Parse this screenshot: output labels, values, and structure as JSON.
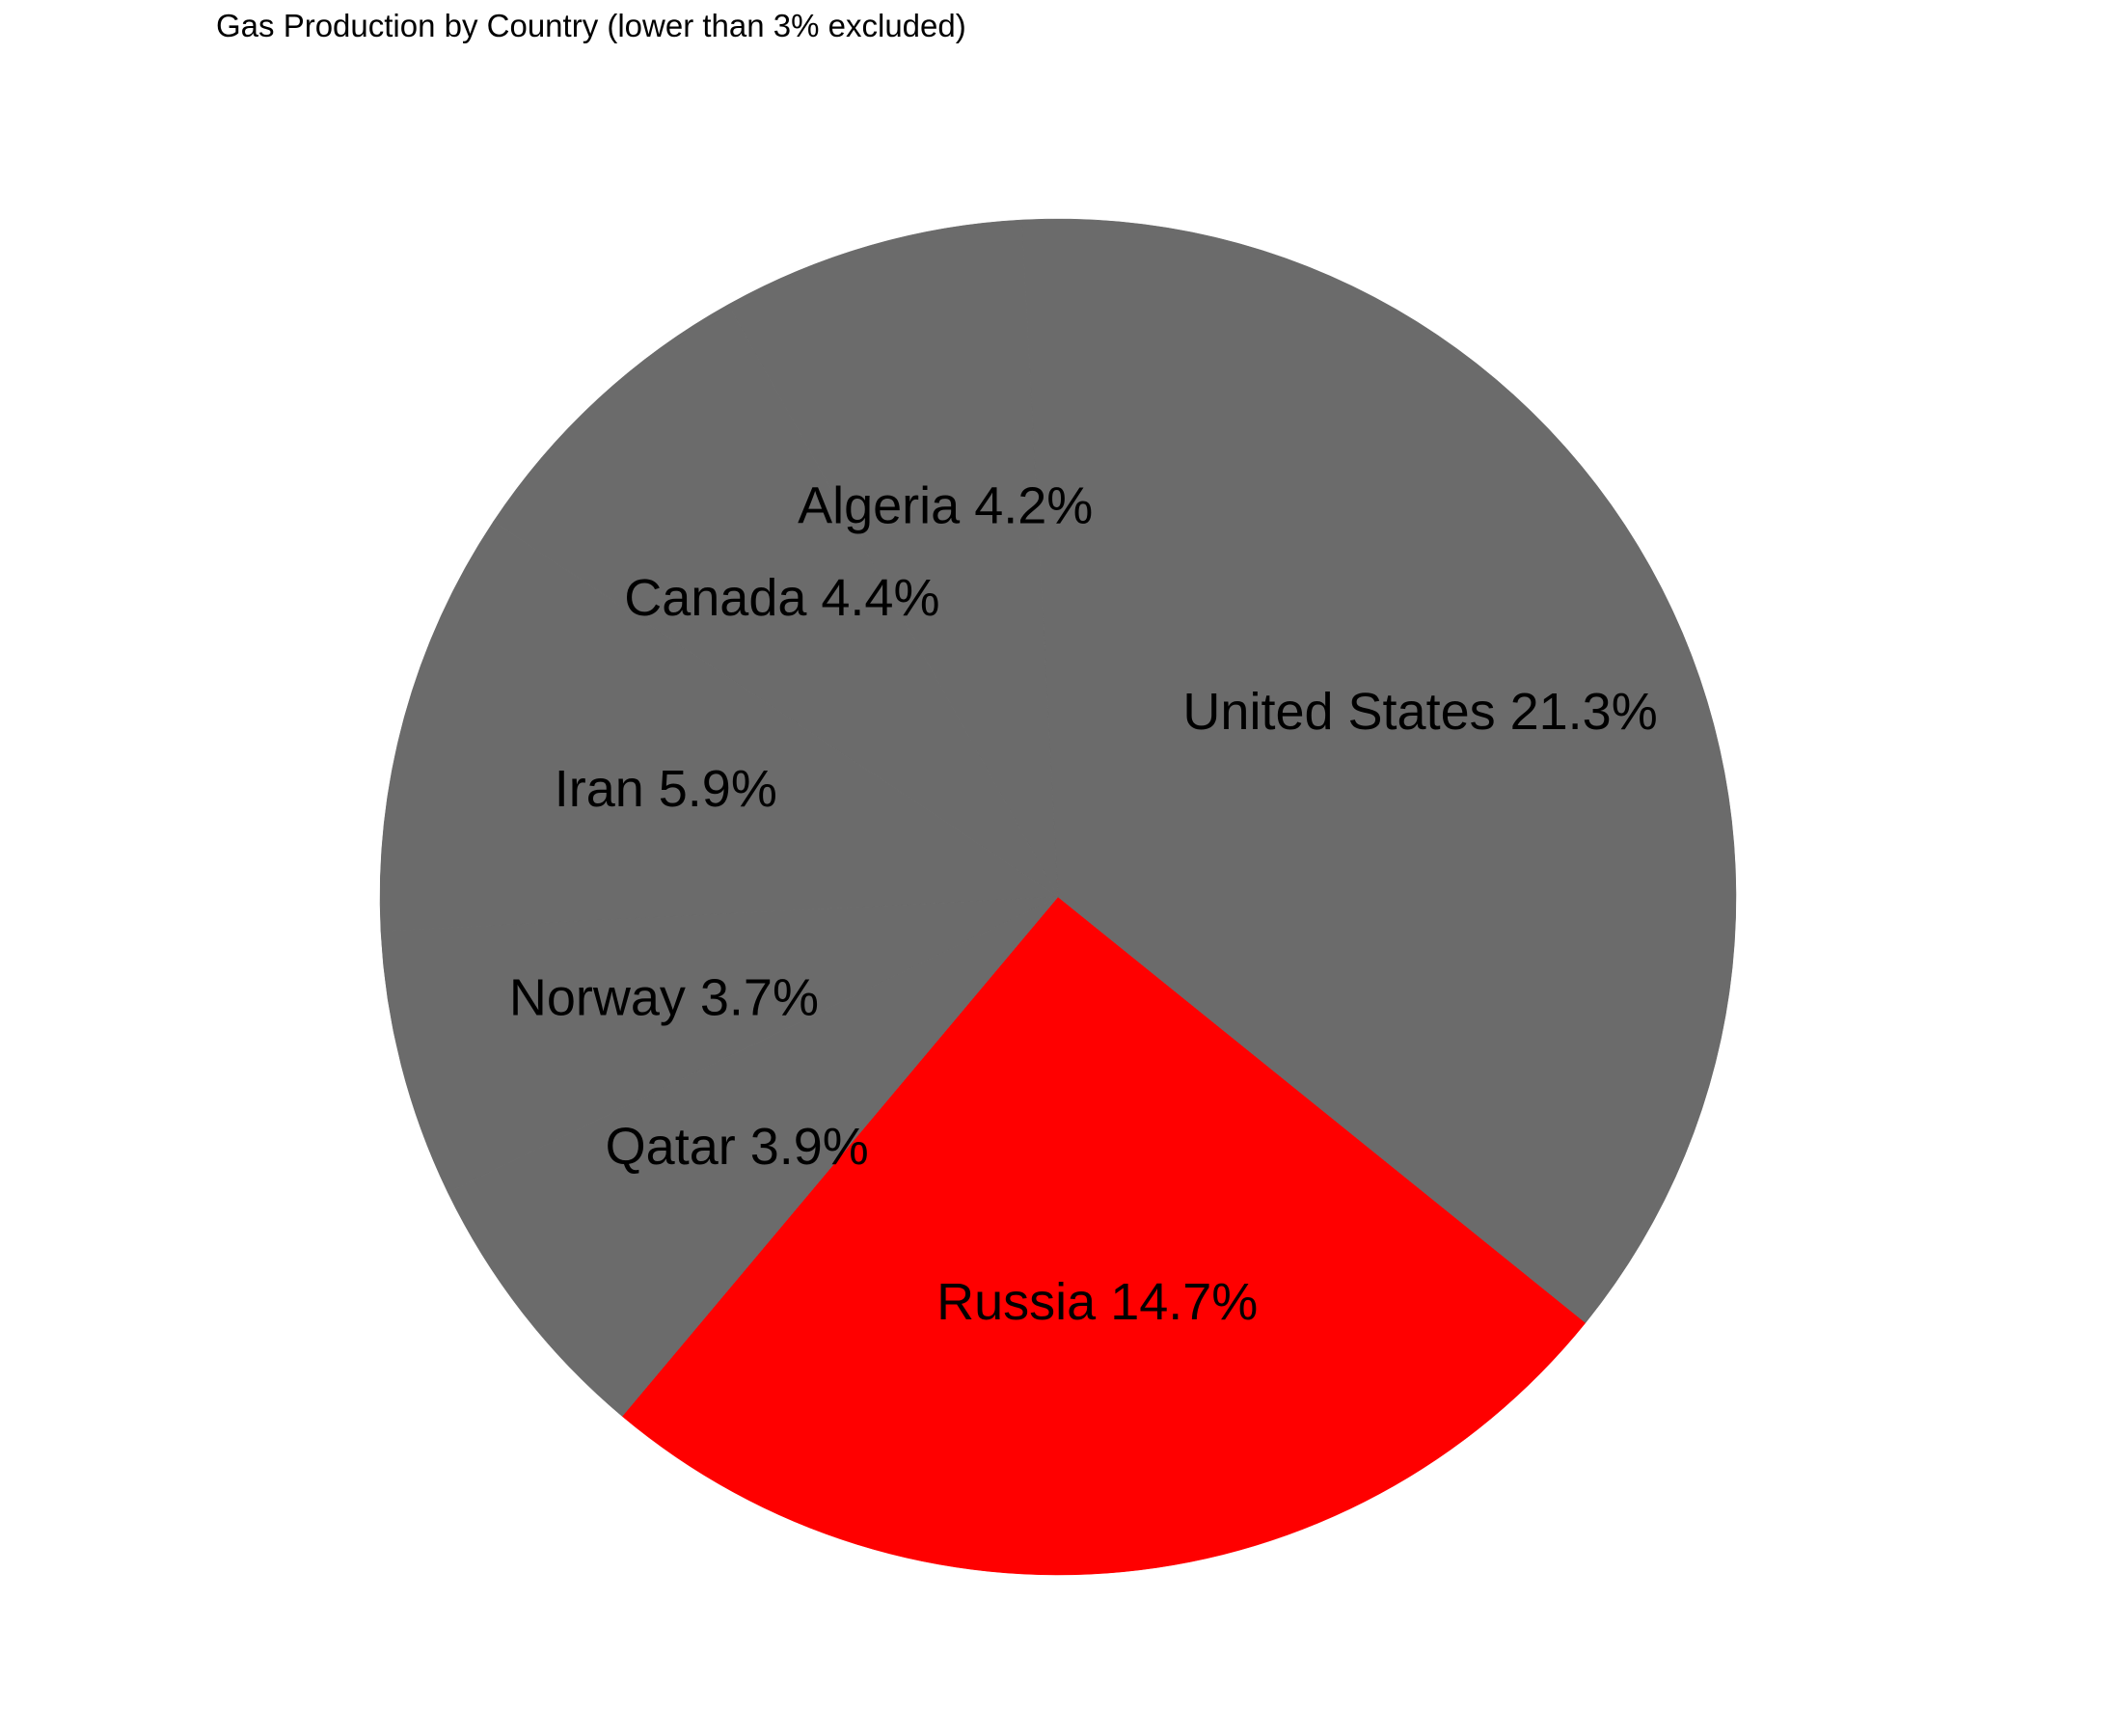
{
  "chart_data": {
    "type": "pie",
    "title": "Gas Production by Country (lower than 3% excluded)",
    "start_angle_deg": 230,
    "direction": "counterclockwise",
    "legend": "none",
    "slices": [
      {
        "name": "Russia",
        "value": 14.7,
        "label": "Russia 14.7%",
        "color": "#ff0000"
      },
      {
        "name": "United States",
        "value": 21.3,
        "label": "United States 21.3%",
        "color": "#6b6b6b"
      },
      {
        "name": "Algeria",
        "value": 4.2,
        "label": "Algeria 4.2%",
        "color": "#6b6b6b"
      },
      {
        "name": "Canada",
        "value": 4.4,
        "label": "Canada 4.4%",
        "color": "#6b6b6b"
      },
      {
        "name": "Iran",
        "value": 5.9,
        "label": "Iran 5.9%",
        "color": "#6b6b6b"
      },
      {
        "name": "Norway",
        "value": 3.7,
        "label": "Norway 3.7%",
        "color": "#6b6b6b"
      },
      {
        "name": "Qatar",
        "value": 3.9,
        "label": "Qatar 3.9%",
        "color": "#6b6b6b"
      }
    ]
  }
}
